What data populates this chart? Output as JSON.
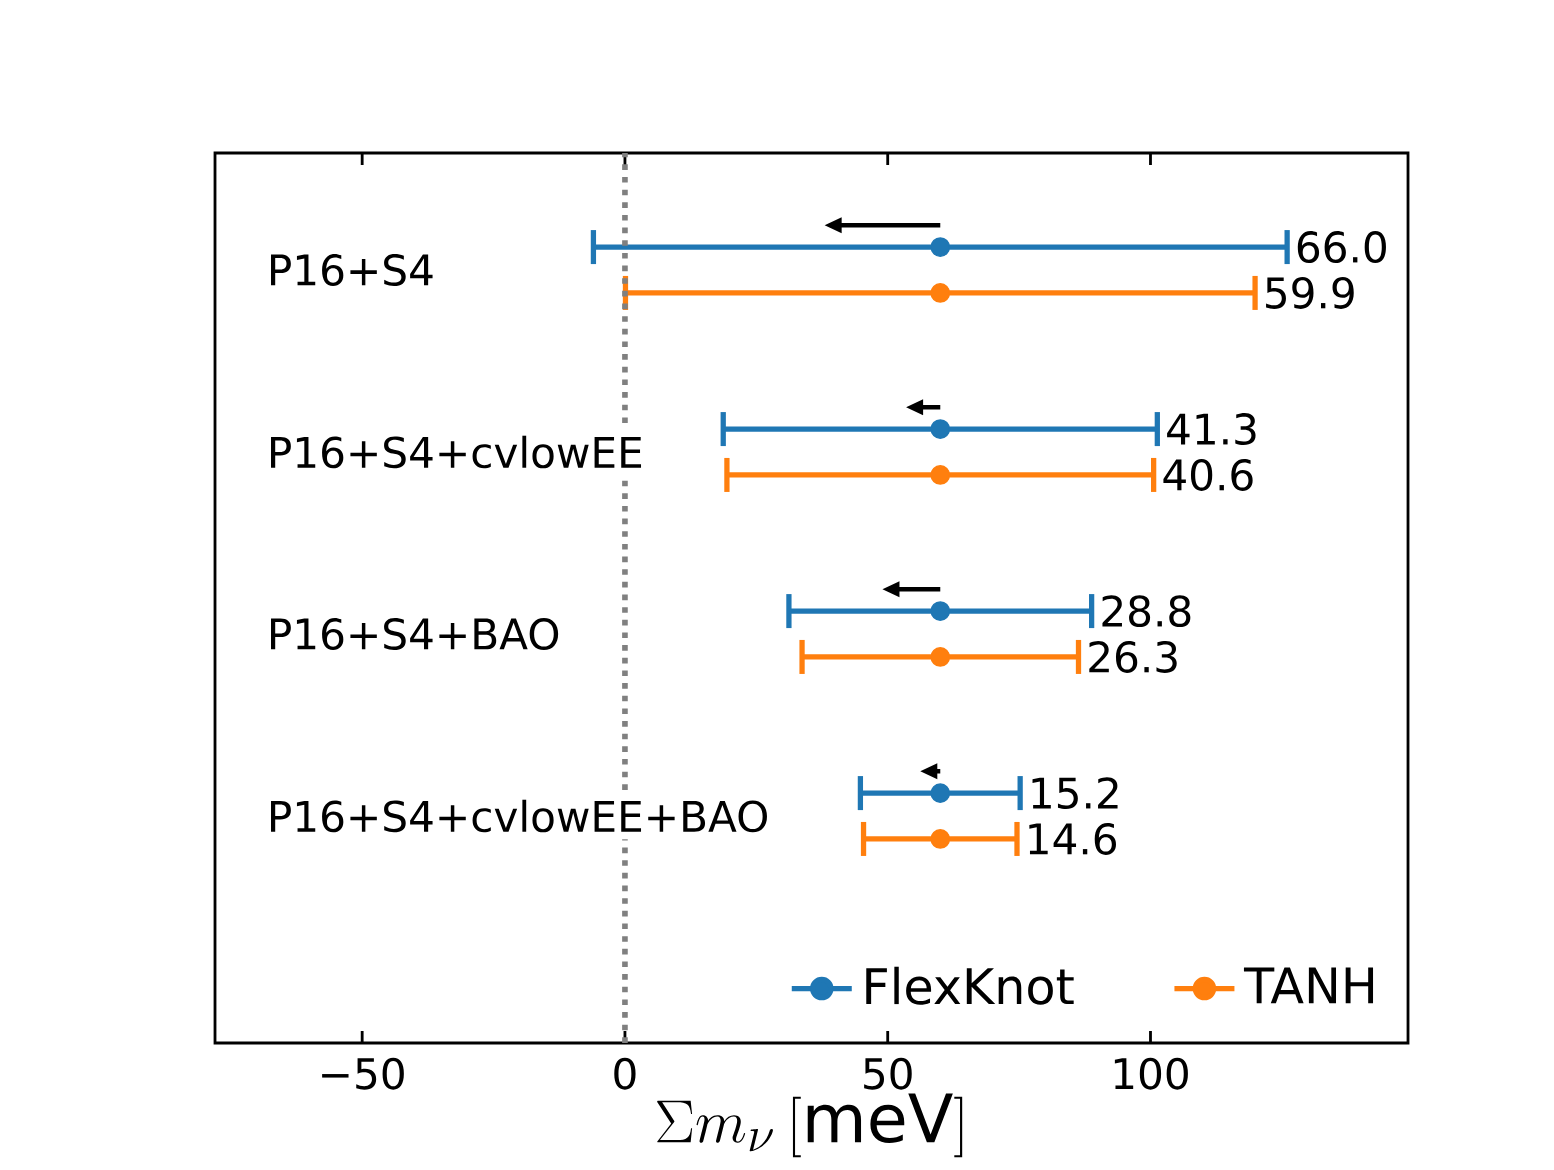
{
  "chart_data": {
    "type": "scatter",
    "orientation": "horizontal",
    "xlabel": "\\Sigma m_{\\nu}\\,[\\mathrm{meV}]",
    "categories": [
      "P16+S4",
      "P16+S4+cvlowEE",
      "P16+S4+BAO",
      "P16+S4+cvlowEE+BAO"
    ],
    "series": [
      {
        "name": "FlexKnot",
        "color": "#1f77b4",
        "values": [
          60,
          60,
          60,
          60
        ],
        "errors": [
          66.0,
          41.3,
          28.8,
          15.2
        ]
      },
      {
        "name": "TANH",
        "color": "#ff7f0e",
        "values": [
          60,
          60,
          60,
          60
        ],
        "errors": [
          59.9,
          40.6,
          26.3,
          14.6
        ]
      }
    ],
    "annotations": [
      "66.0",
      "41.3",
      "28.8",
      "15.2",
      "59.9",
      "40.6",
      "26.3",
      "14.6"
    ],
    "xlim": [
      -78,
      149
    ],
    "xticks": [
      {
        "value": -50,
        "label": "−50"
      },
      0,
      50,
      100
    ],
    "ref_lines": [
      {
        "axis": "x",
        "value": 0,
        "color": "#808080",
        "line_style": "dotted"
      }
    ],
    "marker": "circle",
    "legend": "bottom right"
  }
}
